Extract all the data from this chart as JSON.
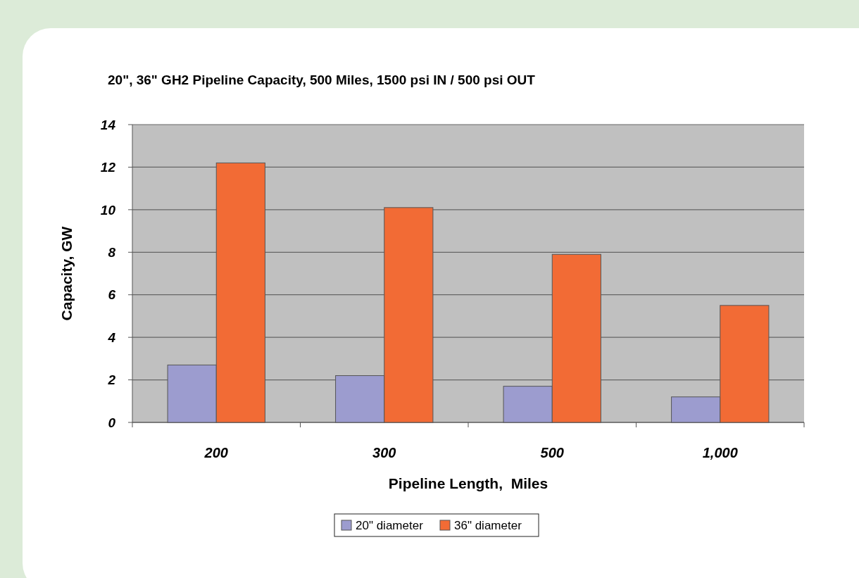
{
  "chart_data": {
    "type": "bar",
    "title": "20\", 36\" GH2 Pipeline Capacity, 500 Miles, 1500 psi IN / 500 psi OUT",
    "xlabel": "Pipeline Length,  Miles",
    "ylabel": "Capacity, GW",
    "categories": [
      "200",
      "300",
      "500",
      "1,000"
    ],
    "series": [
      {
        "name": "20\" diameter",
        "color": "#9c9ccf",
        "values": [
          2.7,
          2.2,
          1.7,
          1.2
        ]
      },
      {
        "name": "36\" diameter",
        "color": "#f26b35",
        "values": [
          12.2,
          10.1,
          7.9,
          5.5
        ]
      }
    ],
    "ylim": [
      0,
      14
    ],
    "yticks": [
      0,
      2,
      4,
      6,
      8,
      10,
      12,
      14
    ],
    "grid": "y",
    "legend": "bottom"
  }
}
